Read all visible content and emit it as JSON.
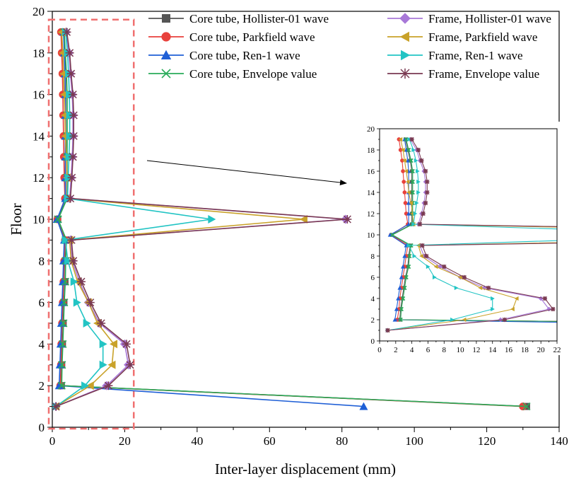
{
  "chart_data": [
    {
      "type": "line",
      "xlabel": "Inter-layer displacement (mm)",
      "ylabel": "Floor",
      "xlim": [
        0,
        140
      ],
      "ylim": [
        0,
        20
      ],
      "xticks": [
        0,
        20,
        40,
        60,
        80,
        100,
        120,
        140
      ],
      "yticks": [
        0,
        2,
        4,
        6,
        8,
        10,
        12,
        14,
        16,
        18,
        20
      ],
      "grid": false,
      "legend_position": "top-right",
      "series": [
        {
          "name": "Core tube, Hollister-01 wave",
          "color": "#555555",
          "marker": "square",
          "x": [
            131.0,
            2.5,
            2.6,
            2.8,
            3.0,
            3.2,
            3.5,
            3.6,
            3.8,
            1.5,
            4.0,
            4.0,
            4.0,
            4.0,
            4.0,
            4.0,
            3.8,
            3.5,
            3.2
          ],
          "y": [
            1,
            2,
            3,
            4,
            5,
            6,
            7,
            8,
            9,
            10,
            11,
            12,
            13,
            14,
            15,
            16,
            17,
            18,
            19
          ]
        },
        {
          "name": "Core tube, Parkfield wave",
          "color": "#e8413c",
          "marker": "circle",
          "x": [
            130.0,
            2.2,
            2.4,
            2.5,
            2.7,
            2.9,
            3.1,
            3.3,
            3.5,
            1.4,
            3.5,
            3.3,
            3.2,
            3.1,
            3.0,
            2.9,
            2.8,
            2.6,
            2.4
          ],
          "y": [
            1,
            2,
            3,
            4,
            5,
            6,
            7,
            8,
            9,
            10,
            11,
            12,
            13,
            14,
            15,
            16,
            17,
            18,
            19
          ]
        },
        {
          "name": "Core tube, Ren-1 wave",
          "color": "#1f5fd6",
          "marker": "triangle-up",
          "x": [
            86.0,
            1.9,
            2.1,
            2.3,
            2.5,
            2.7,
            2.9,
            3.1,
            3.3,
            1.3,
            3.6,
            3.6,
            3.6,
            3.6,
            3.6,
            3.6,
            3.5,
            3.3,
            3.1
          ],
          "y": [
            1,
            2,
            3,
            4,
            5,
            6,
            7,
            8,
            9,
            10,
            11,
            12,
            13,
            14,
            15,
            16,
            17,
            18,
            19
          ]
        },
        {
          "name": "Core tube, Envelope value",
          "color": "#2aab5a",
          "marker": "x",
          "x": [
            131.0,
            2.6,
            2.7,
            2.9,
            3.1,
            3.3,
            3.6,
            3.7,
            3.9,
            1.6,
            4.1,
            4.1,
            4.1,
            4.1,
            4.1,
            4.1,
            3.9,
            3.6,
            3.3
          ],
          "y": [
            1,
            2,
            3,
            4,
            5,
            6,
            7,
            8,
            9,
            10,
            11,
            12,
            13,
            14,
            15,
            16,
            17,
            18,
            19
          ]
        },
        {
          "name": "Frame, Hollister-01 wave",
          "color": "#a878d8",
          "marker": "diamond",
          "x": [
            1.0,
            15.0,
            21.0,
            20.0,
            13.0,
            10.0,
            7.5,
            5.5,
            5.0,
            81.0,
            4.8,
            5.2,
            5.5,
            5.7,
            5.7,
            5.5,
            5.0,
            4.6,
            3.8
          ],
          "y": [
            1,
            2,
            3,
            4,
            5,
            6,
            7,
            8,
            9,
            10,
            11,
            12,
            13,
            14,
            15,
            16,
            17,
            18,
            19
          ]
        },
        {
          "name": "Frame, Parkfield wave",
          "color": "#c9a22a",
          "marker": "triangle-left",
          "x": [
            1.0,
            10.5,
            16.5,
            17.0,
            12.5,
            10.0,
            7.0,
            5.2,
            4.8,
            69.5,
            4.2,
            4.1,
            3.9,
            3.6,
            3.5,
            3.3,
            3.1,
            2.9,
            2.6
          ],
          "y": [
            1,
            2,
            3,
            4,
            5,
            6,
            7,
            8,
            9,
            10,
            11,
            12,
            13,
            14,
            15,
            16,
            17,
            18,
            19
          ]
        },
        {
          "name": "Frame, Ren-1 wave",
          "color": "#22c4c4",
          "marker": "triangle-right",
          "x": [
            1.0,
            9.0,
            14.0,
            14.0,
            9.5,
            6.8,
            6.0,
            4.3,
            3.6,
            44.0,
            4.2,
            4.4,
            4.6,
            4.8,
            4.8,
            4.7,
            4.5,
            4.2,
            3.7
          ],
          "y": [
            1,
            2,
            3,
            4,
            5,
            6,
            7,
            8,
            9,
            10,
            11,
            12,
            13,
            14,
            15,
            16,
            17,
            18,
            19
          ]
        },
        {
          "name": "Frame, Envelope value",
          "color": "#7a3a52",
          "marker": "star",
          "x": [
            1.0,
            15.5,
            21.5,
            20.5,
            13.5,
            10.5,
            8.0,
            5.8,
            5.3,
            81.5,
            5.0,
            5.4,
            5.7,
            5.9,
            5.9,
            5.7,
            5.2,
            4.8,
            4.0
          ],
          "y": [
            1,
            2,
            3,
            4,
            5,
            6,
            7,
            8,
            9,
            10,
            11,
            12,
            13,
            14,
            15,
            16,
            17,
            18,
            19
          ]
        }
      ],
      "annotations": [
        "dashed red box around the 0-22 mm region",
        "arrow pointing to a zoomed inset"
      ]
    },
    {
      "type": "line",
      "role": "inset",
      "xlim": [
        0,
        22
      ],
      "ylim": [
        0,
        20
      ],
      "xticks": [
        0,
        2,
        4,
        6,
        8,
        10,
        12,
        14,
        16,
        18,
        20,
        22
      ],
      "yticks": [
        0,
        2,
        4,
        6,
        8,
        10,
        12,
        14,
        16,
        18,
        20
      ],
      "grid": false
    }
  ]
}
